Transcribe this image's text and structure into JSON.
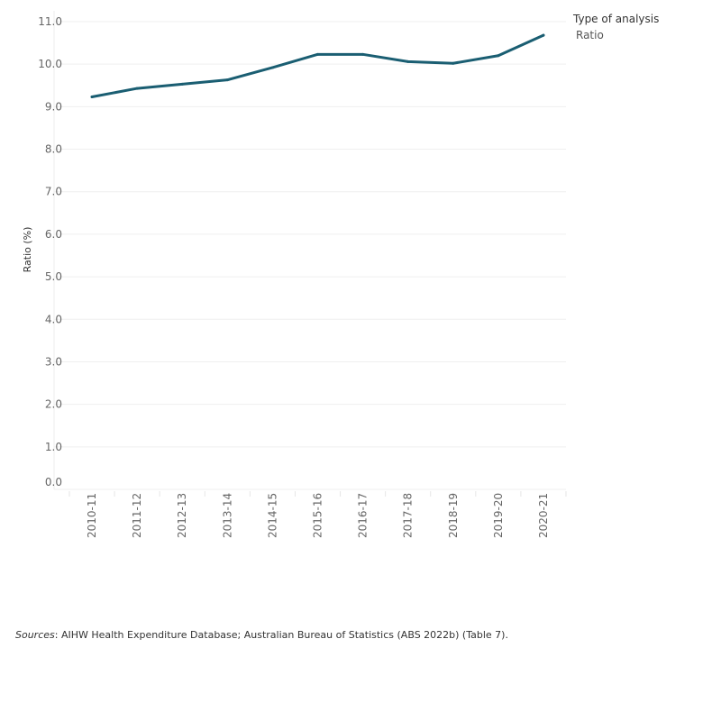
{
  "chart_data": {
    "type": "line",
    "title": "",
    "xlabel": "",
    "ylabel": "Ratio (%)",
    "ylim": [
      0,
      11
    ],
    "yticks": [
      "0.0",
      "1.0",
      "2.0",
      "3.0",
      "4.0",
      "5.0",
      "6.0",
      "7.0",
      "8.0",
      "9.0",
      "10.0",
      "11.0"
    ],
    "grid": true,
    "categories": [
      "2010-11",
      "2011-12",
      "2012-13",
      "2013-14",
      "2014-15",
      "2015-16",
      "2016-17",
      "2017-18",
      "2018-19",
      "2019-20",
      "2020-21"
    ],
    "series": [
      {
        "name": "Ratio",
        "color": "#1a5e72",
        "values": [
          9.23,
          9.43,
          9.53,
          9.63,
          9.92,
          10.23,
          10.23,
          10.06,
          10.02,
          10.2,
          10.68
        ]
      }
    ],
    "legend": {
      "title": "Type of analysis",
      "placement": "top-right"
    }
  },
  "source": {
    "label": "Sources",
    "text": ": AIHW Health Expenditure Database; Australian Bureau of Statistics (ABS 2022b) (Table 7)."
  }
}
